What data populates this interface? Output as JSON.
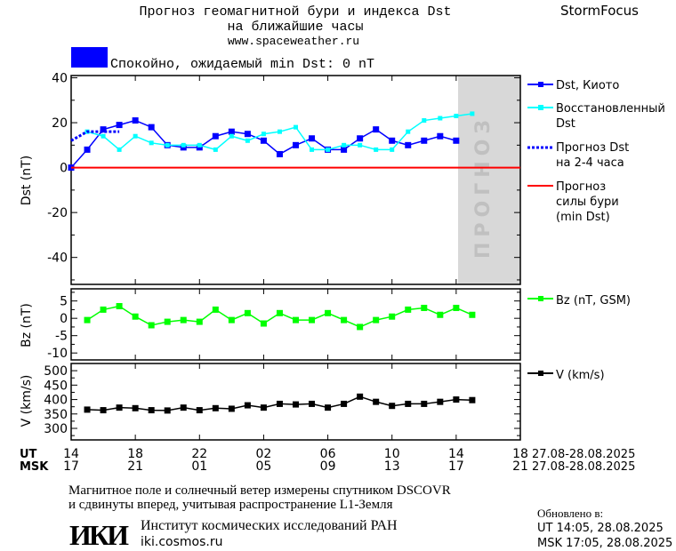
{
  "header": {
    "title_line1": "Прогноз геомагнитной бури и индекса Dst",
    "title_line2": "на ближайшие часы",
    "site": "www.spaceweather.ru",
    "brand": "StormFocus",
    "status_text": "Спокойно, ожидаемый min Dst: 0 nT",
    "status_color": "#0000ff"
  },
  "colors": {
    "kyoto": "#0000ff",
    "reconstructed": "#00ffff",
    "forecast": "#0000ff",
    "storm": "#ff0000",
    "bz": "#00ff00",
    "v": "#000000",
    "forecast_bg": "#d8d8d8"
  },
  "forecast_watermark": "ПРОГНОЗ",
  "legend": {
    "kyoto": "Dst, Киото",
    "reconstructed_1": "Восстановленный",
    "reconstructed_2": "Dst",
    "forecast_1": "Прогноз Dst",
    "forecast_2": "на 2-4 часа",
    "storm_1": "Прогноз",
    "storm_2": "силы бури",
    "storm_3": "(min Dst)",
    "bz": "Bz (nT, GSM)",
    "v": "V (km/s)"
  },
  "xaxis": {
    "ut_label": "UT",
    "msk_label": "MSK",
    "ut_ticks": [
      "14",
      "18",
      "22",
      "02",
      "06",
      "10",
      "14",
      "18"
    ],
    "msk_ticks": [
      "17",
      "21",
      "01",
      "05",
      "09",
      "13",
      "17",
      "21"
    ],
    "date_range_ut": "27.08-28.08.2025",
    "date_range_msk": "27.08-28.08.2025"
  },
  "chart_data": [
    {
      "type": "line",
      "ylabel": "Dst (nT)",
      "ylim": [
        -52,
        41
      ],
      "yticks": [
        "40",
        "20",
        "0",
        "-20",
        "-40"
      ],
      "xrange_ut_hours": [
        14,
        18
      ],
      "series": [
        {
          "name": "Dst, Киото",
          "start_ut": "14",
          "values": [
            0,
            8,
            17,
            19,
            21,
            18,
            10,
            9,
            9,
            14,
            16,
            15,
            12,
            6,
            10,
            13,
            8,
            8,
            13,
            17,
            12,
            10,
            12,
            14,
            12
          ]
        },
        {
          "name": "Восстановленный Dst",
          "start_ut": "15",
          "values": [
            16,
            14,
            8,
            14,
            11,
            10,
            10,
            10,
            8,
            14,
            12,
            15,
            16,
            18,
            8,
            8,
            10,
            10,
            8,
            8,
            16,
            21,
            22,
            23,
            24
          ]
        },
        {
          "name": "Прогноз Dst на 2-4 часа",
          "start_ut": "14",
          "values": [
            12,
            16,
            16,
            16
          ]
        },
        {
          "name": "Прогноз силы бури (min Dst)",
          "value": 0
        }
      ]
    },
    {
      "type": "line",
      "ylabel": "Bz (nT)",
      "ylim": [
        -12,
        8.5
      ],
      "yticks": [
        "5",
        "0",
        "-5",
        "-10"
      ],
      "series": [
        {
          "name": "Bz (nT, GSM)",
          "start_ut": "15",
          "values": [
            -0.5,
            2.5,
            3.5,
            0.5,
            -2,
            -1,
            -0.5,
            -1,
            2.5,
            -0.5,
            1.5,
            -1.5,
            1.5,
            -0.5,
            -0.5,
            1.5,
            -0.5,
            -2.5,
            -0.5,
            0.5,
            2.5,
            3,
            1,
            3,
            1
          ]
        }
      ]
    },
    {
      "type": "line",
      "ylabel": "V (km/s)",
      "ylim": [
        260,
        525
      ],
      "yticks": [
        "500",
        "450",
        "400",
        "350",
        "300"
      ],
      "series": [
        {
          "name": "V (km/s)",
          "start_ut": "15",
          "values": [
            365,
            363,
            372,
            370,
            363,
            362,
            372,
            363,
            370,
            368,
            380,
            372,
            385,
            383,
            385,
            372,
            385,
            410,
            392,
            378,
            385,
            385,
            392,
            400,
            398
          ]
        }
      ]
    }
  ],
  "footer": {
    "note_line1": "Магнитное поле и солнечный ветер измерены спутником DSCOVR",
    "note_line2": "и сдвинуты вперед, учитывая распространение L1-Земля",
    "updated_label": "Обновлено в:",
    "updated_ut": "UT  14:05, 28.08.2025",
    "updated_msk": "MSK 17:05, 28.08.2025",
    "institute": "Институт космических исследований РАН",
    "institute_url": "iki.cosmos.ru",
    "logo_text": "ИКИ"
  }
}
